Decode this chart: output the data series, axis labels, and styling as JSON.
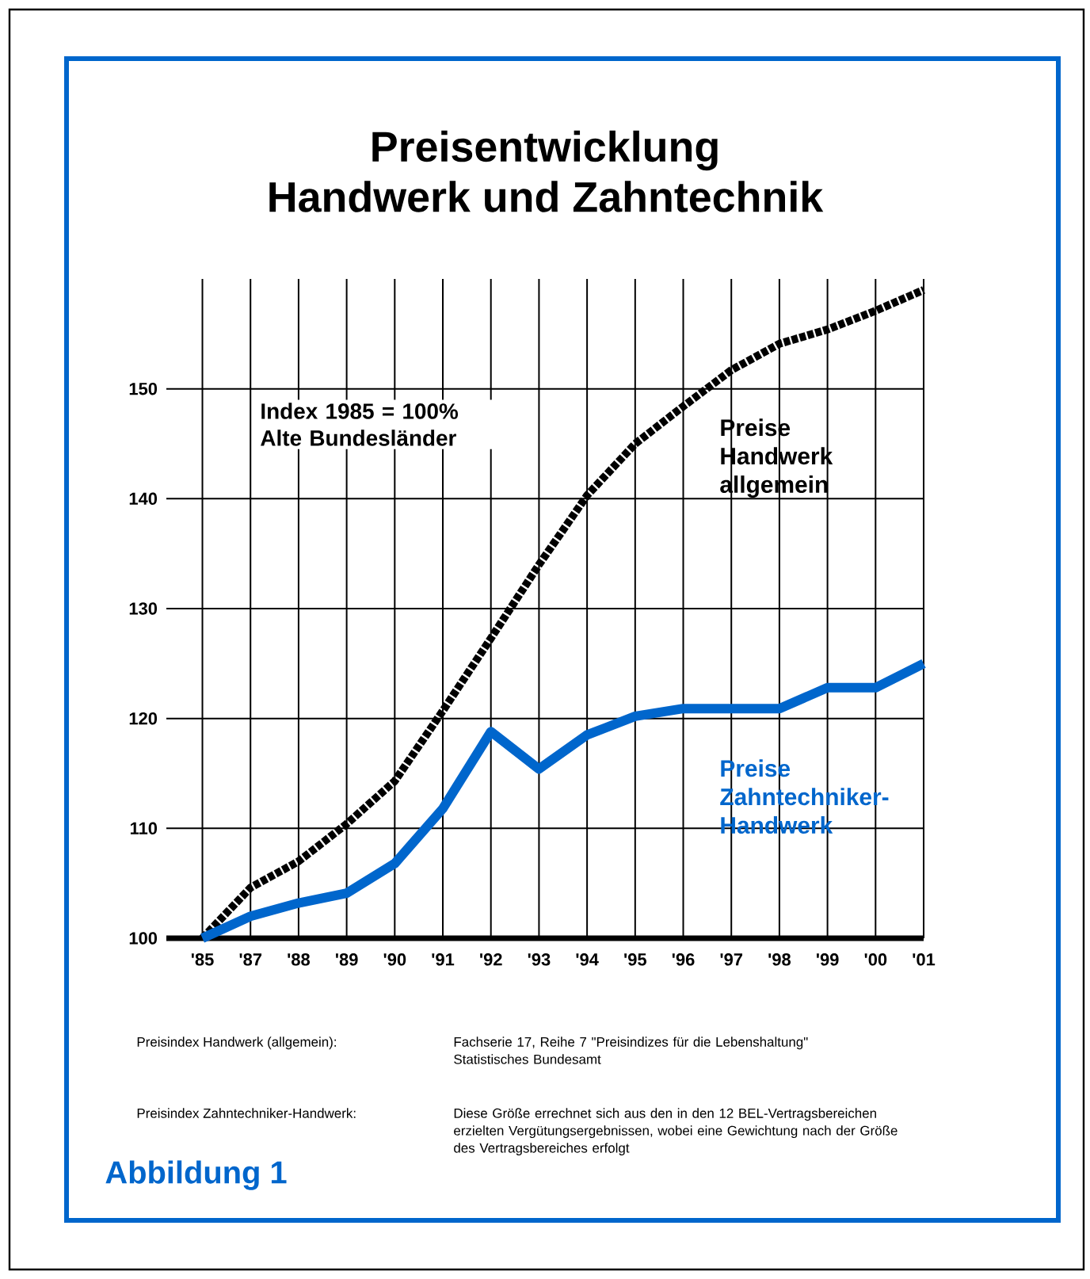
{
  "chart_data": {
    "type": "line",
    "title": "Preisentwicklung",
    "subtitle": "Handwerk und Zahntechnik",
    "categories": [
      "'85",
      "'87",
      "'88",
      "'89",
      "'90",
      "'91",
      "'92",
      "'93",
      "'94",
      "'95",
      "'96",
      "'97",
      "'98",
      "'99",
      "'00",
      "'01"
    ],
    "series": [
      {
        "name": "Preise Handwerk allgemein",
        "color": "#000000",
        "line_style": "dashed",
        "values": [
          100,
          104.6,
          107,
          110.4,
          114.3,
          120.7,
          127.3,
          134,
          140.3,
          145,
          148.4,
          151.7,
          154.1,
          155.4,
          157.1,
          159
        ]
      },
      {
        "name": "Preise Zahntechniker-Handwerk",
        "color": "#0066cc",
        "line_style": "solid",
        "values": [
          100,
          102,
          103.2,
          104.1,
          106.8,
          111.8,
          118.8,
          115.4,
          118.5,
          120.2,
          120.9,
          120.9,
          120.9,
          122.8,
          122.8,
          125
        ]
      }
    ],
    "ylim": [
      100,
      160
    ],
    "yticks": [
      100,
      110,
      120,
      130,
      140,
      150
    ],
    "grid": true,
    "marker": "none",
    "annotations": [
      "Index  1985 = 100% Alte Bundesländer",
      "Preisindex Handwerk (allgemein):",
      "Fachserie 17, Reihe 7 \"Preisindizes für die Lebenshaltung\" Statistisches Bundesamt",
      "Preisindex Zahntechniker-Handwerk:",
      "Diese Größe errechnet sich aus den in den 12 BEL-Vertragsbereichen erzielten Vergütungsergebnissen, wobei eine Gewichtung nach der Größe des Vertragsbereiches erfolgt",
      "Abbildung 1"
    ]
  }
}
